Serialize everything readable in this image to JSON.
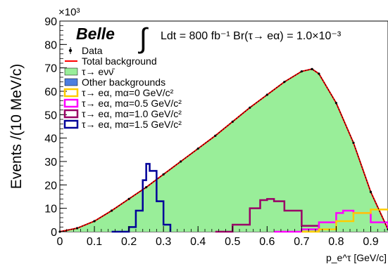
{
  "chart_data": {
    "type": "line",
    "experiment_label": "Belle",
    "lumi_text": "Ldt = 800 fb⁻¹ Br(τ→ eα) = 1.0×10⁻³",
    "ylabel": "Events /(10 MeV/c)",
    "xlabel": "p_e^τ [GeV/c]",
    "y_multiplier": "×10³",
    "xlim": [
      0,
      0.95
    ],
    "ylim": [
      0,
      90000
    ],
    "x_ticks": [
      "0",
      "0.1",
      "0.2",
      "0.3",
      "0.4",
      "0.5",
      "0.6",
      "0.7",
      "0.8",
      "0.9"
    ],
    "y_ticks": [
      "0",
      "10",
      "20",
      "30",
      "40",
      "50",
      "60",
      "70",
      "80",
      "90"
    ],
    "legend": [
      {
        "label": "Data",
        "kind": "marker"
      },
      {
        "label": "Total background",
        "kind": "line",
        "color": "#ff0000"
      },
      {
        "label": "τ→ eνν̄",
        "kind": "box",
        "color": "#99ee99"
      },
      {
        "label": "Other backgrounds",
        "kind": "box",
        "color": "#4d7fe0"
      },
      {
        "label": "τ→ eα, mα=0 GeV/c²",
        "kind": "box-outline",
        "color": "#ffcc00"
      },
      {
        "label": "τ→ eα, mα=0.5 GeV/c²",
        "kind": "box-outline",
        "color": "#ff00ff"
      },
      {
        "label": "τ→ eα, mα=1.0 GeV/c²",
        "kind": "box-outline",
        "color": "#990066"
      },
      {
        "label": "τ→ eα, mα=1.5 GeV/c²",
        "kind": "box-outline",
        "color": "#000099"
      }
    ],
    "series": [
      {
        "name": "τ→ eνν̄",
        "style": "fill",
        "color": "#99ee99",
        "x": [
          0.0,
          0.05,
          0.1,
          0.15,
          0.2,
          0.25,
          0.3,
          0.35,
          0.4,
          0.45,
          0.5,
          0.55,
          0.6,
          0.65,
          0.7,
          0.73,
          0.75,
          0.8,
          0.85,
          0.9,
          0.95
        ],
        "y": [
          0,
          1500,
          4500,
          9000,
          14000,
          19000,
          24500,
          30000,
          35500,
          41000,
          47000,
          53000,
          58500,
          64000,
          68500,
          69500,
          67500,
          55000,
          38000,
          17000,
          1000
        ]
      },
      {
        "name": "Data",
        "style": "points",
        "color": "#000000",
        "x": [
          0.0,
          0.05,
          0.1,
          0.15,
          0.2,
          0.25,
          0.3,
          0.35,
          0.4,
          0.45,
          0.5,
          0.55,
          0.6,
          0.65,
          0.7,
          0.73,
          0.75,
          0.8,
          0.85,
          0.9,
          0.95
        ],
        "y": [
          0,
          1500,
          4500,
          9000,
          14000,
          19000,
          24500,
          30000,
          35500,
          41000,
          47000,
          53000,
          58500,
          64000,
          68500,
          69500,
          67500,
          55000,
          38000,
          17000,
          1000
        ]
      },
      {
        "name": "τ→ eα, mα=1.5 GeV/c²",
        "style": "step",
        "color": "#000099",
        "x": [
          0.15,
          0.2,
          0.22,
          0.24,
          0.25,
          0.26,
          0.28,
          0.3,
          0.32
        ],
        "y": [
          0,
          2000,
          9000,
          22000,
          29000,
          26000,
          13000,
          3000,
          0
        ]
      },
      {
        "name": "τ→ eα, mα=1.0 GeV/c²",
        "style": "step",
        "color": "#990066",
        "x": [
          0.45,
          0.5,
          0.55,
          0.58,
          0.6,
          0.62,
          0.65,
          0.7,
          0.75
        ],
        "y": [
          0,
          3000,
          10000,
          13500,
          14000,
          13000,
          9000,
          2500,
          0
        ]
      },
      {
        "name": "τ→ eα, mα=0.5 GeV/c²",
        "style": "step",
        "color": "#ff00ff",
        "x": [
          0.62,
          0.7,
          0.75,
          0.8,
          0.82,
          0.85,
          0.9,
          0.95
        ],
        "y": [
          0,
          1000,
          4000,
          8000,
          9000,
          8000,
          4000,
          500
        ]
      },
      {
        "name": "τ→ eα, mα=0 GeV/c²",
        "style": "step",
        "color": "#ffcc00",
        "x": [
          0.7,
          0.75,
          0.8,
          0.85,
          0.9,
          0.95
        ],
        "y": [
          0,
          1000,
          4500,
          8000,
          9500,
          9000
        ]
      }
    ]
  }
}
